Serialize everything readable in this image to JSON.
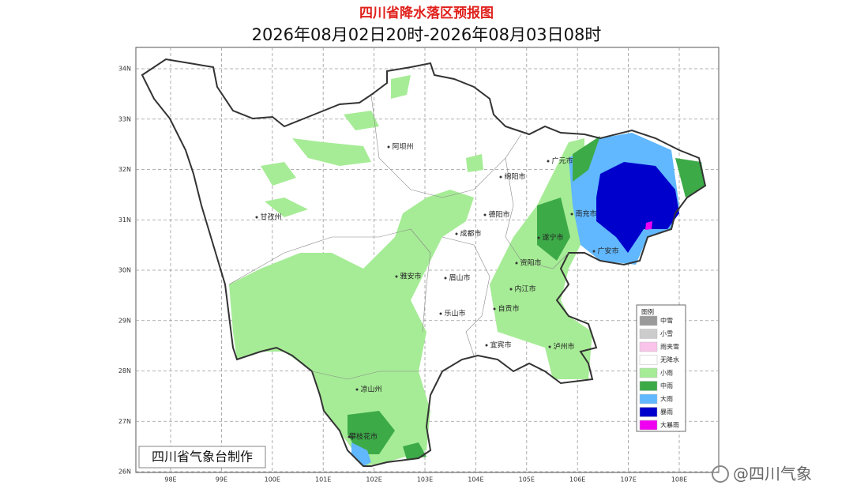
{
  "header": {
    "title": "四川省降水落区预报图",
    "subtitle": "2026年08月02日20时-2026年08月03日08时"
  },
  "map": {
    "lat_ticks": [
      "34N",
      "33N",
      "32N",
      "31N",
      "30N",
      "29N",
      "28N",
      "27N",
      "26N"
    ],
    "lon_ticks": [
      "98E",
      "99E",
      "100E",
      "101E",
      "102E",
      "103E",
      "104E",
      "105E",
      "106E",
      "107E",
      "108E"
    ],
    "cities": [
      "阿坝州",
      "绵阳市",
      "广元市",
      "甘孜州",
      "德阳市",
      "南充市",
      "成都市",
      "遂宁市",
      "广安市",
      "资阳市",
      "雅安市",
      "眉山市",
      "内江市",
      "自贡市",
      "乐山市",
      "宜宾市",
      "泸州市",
      "凉山州",
      "攀枝花市"
    ]
  },
  "legend": {
    "title": "图例",
    "items": [
      {
        "label": "中雪",
        "color": "#9a9a9a"
      },
      {
        "label": "小雪",
        "color": "#cccccc"
      },
      {
        "label": "雨夹雪",
        "color": "#fac3ea"
      },
      {
        "label": "无降水",
        "color": "#ffffff"
      },
      {
        "label": "小雨",
        "color": "#a6ec96"
      },
      {
        "label": "中雨",
        "color": "#3daa48"
      },
      {
        "label": "大雨",
        "color": "#61b8ff"
      },
      {
        "label": "暴雨",
        "color": "#0000cc"
      },
      {
        "label": "大暴雨",
        "color": "#f000f0"
      }
    ]
  },
  "credit": "四川省气象台制作",
  "watermark": "@四川气象"
}
